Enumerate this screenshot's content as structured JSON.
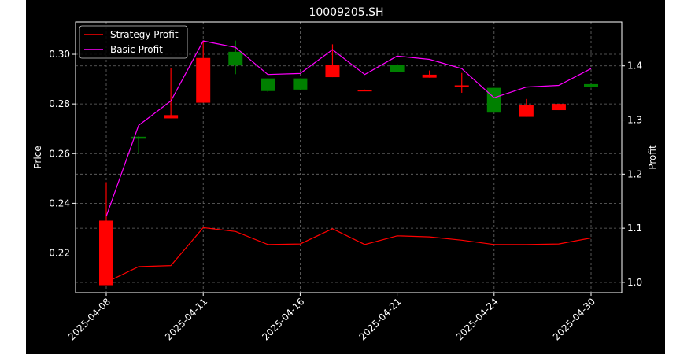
{
  "chart_data": {
    "type": "candlestick",
    "title": "10009205.SH",
    "ylabel_left": "Price",
    "ylabel_right": "Profit",
    "ylim_left": [
      0.204,
      0.313
    ],
    "ylim_right": [
      0.981,
      1.481
    ],
    "left_ticks": [
      "0.22",
      "0.24",
      "0.26",
      "0.28",
      "0.30"
    ],
    "right_ticks": [
      "1.0",
      "1.1",
      "1.2",
      "1.3",
      "1.4"
    ],
    "x_tick_labels": [
      "2025-04-08",
      "2025-04-11",
      "2025-04-16",
      "2025-04-21",
      "2025-04-24",
      "2025-04-30"
    ],
    "x_tick_index": [
      0,
      3,
      6,
      9,
      12,
      15
    ],
    "grid": true,
    "legend_position": "top-left",
    "candles": [
      {
        "open": 0.233,
        "close": 0.207,
        "high": 0.2485,
        "low": 0.207,
        "color": "red"
      },
      {
        "open": 0.266,
        "close": 0.2668,
        "high": 0.267,
        "low": 0.26,
        "color": "green"
      },
      {
        "open": 0.2755,
        "close": 0.2742,
        "high": 0.2945,
        "low": 0.2742,
        "color": "red"
      },
      {
        "open": 0.2985,
        "close": 0.2805,
        "high": 0.305,
        "low": 0.2805,
        "color": "red"
      },
      {
        "open": 0.301,
        "close": 0.2955,
        "high": 0.3055,
        "low": 0.292,
        "color": "green"
      },
      {
        "open": 0.2903,
        "close": 0.2852,
        "high": 0.2903,
        "low": 0.2848,
        "color": "green"
      },
      {
        "open": 0.2903,
        "close": 0.2858,
        "high": 0.2903,
        "low": 0.2858,
        "color": "green"
      },
      {
        "open": 0.2958,
        "close": 0.2908,
        "high": 0.304,
        "low": 0.2908,
        "color": "red"
      },
      {
        "open": 0.2857,
        "close": 0.2857,
        "high": 0.2858,
        "low": 0.2857,
        "color": "red"
      },
      {
        "open": 0.2958,
        "close": 0.2928,
        "high": 0.2962,
        "low": 0.2928,
        "color": "green"
      },
      {
        "open": 0.2918,
        "close": 0.2906,
        "high": 0.2935,
        "low": 0.2906,
        "color": "red"
      },
      {
        "open": 0.2875,
        "close": 0.2868,
        "high": 0.2925,
        "low": 0.2845,
        "color": "red"
      },
      {
        "open": 0.2865,
        "close": 0.2765,
        "high": 0.2865,
        "low": 0.2765,
        "color": "green"
      },
      {
        "open": 0.2795,
        "close": 0.2748,
        "high": 0.282,
        "low": 0.2748,
        "color": "red"
      },
      {
        "open": 0.28,
        "close": 0.2775,
        "high": 0.28,
        "low": 0.2775,
        "color": "red"
      },
      {
        "open": 0.288,
        "close": 0.2868,
        "high": 0.288,
        "low": 0.2865,
        "color": "green"
      }
    ],
    "series": [
      {
        "name": "Strategy Profit",
        "color": "#ff0000",
        "axis": "right",
        "values": [
          1.0,
          1.029,
          1.031,
          1.101,
          1.094,
          1.07,
          1.071,
          1.099,
          1.07,
          1.086,
          1.084,
          1.078,
          1.07,
          1.07,
          1.071,
          1.082
        ]
      },
      {
        "name": "Basic Profit",
        "color": "#ff00ff",
        "axis": "right",
        "values": [
          1.122,
          1.29,
          1.335,
          1.446,
          1.434,
          1.384,
          1.386,
          1.43,
          1.384,
          1.418,
          1.412,
          1.395,
          1.341,
          1.361,
          1.364,
          1.395
        ]
      }
    ]
  }
}
